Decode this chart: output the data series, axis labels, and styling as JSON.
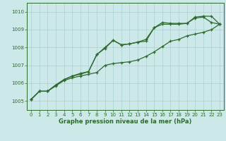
{
  "x": [
    0,
    1,
    2,
    3,
    4,
    5,
    6,
    7,
    8,
    9,
    10,
    11,
    12,
    13,
    14,
    15,
    16,
    17,
    18,
    19,
    20,
    21,
    22,
    23
  ],
  "y_main": [
    1005.1,
    1005.55,
    1005.55,
    1005.9,
    1006.2,
    1006.4,
    1006.5,
    1006.65,
    1007.6,
    1007.95,
    1008.4,
    1008.15,
    1008.2,
    1008.3,
    1008.35,
    1009.1,
    1009.3,
    1009.3,
    1009.3,
    1009.35,
    1009.65,
    1009.7,
    1009.4,
    1009.3
  ],
  "y_high": [
    1005.1,
    1005.55,
    1005.55,
    1005.9,
    1006.2,
    1006.4,
    1006.55,
    1006.65,
    1007.6,
    1008.0,
    1008.4,
    1008.15,
    1008.2,
    1008.3,
    1008.45,
    1009.1,
    1009.4,
    1009.35,
    1009.35,
    1009.35,
    1009.7,
    1009.75,
    1009.75,
    1009.3
  ],
  "y_low": [
    1005.1,
    1005.55,
    1005.55,
    1005.85,
    1006.15,
    1006.3,
    1006.4,
    1006.5,
    1006.6,
    1007.0,
    1007.1,
    1007.15,
    1007.2,
    1007.3,
    1007.5,
    1007.75,
    1008.05,
    1008.35,
    1008.45,
    1008.65,
    1008.75,
    1008.85,
    1009.0,
    1009.3
  ],
  "line_color": "#2d6a2d",
  "bg_color": "#cce8e8",
  "grid_color": "#aad0d0",
  "xlabel": "Graphe pression niveau de la mer (hPa)",
  "ylim": [
    1004.5,
    1010.5
  ],
  "xlim": [
    -0.5,
    23.5
  ],
  "yticks": [
    1005,
    1006,
    1007,
    1008,
    1009,
    1010
  ],
  "xticks": [
    0,
    1,
    2,
    3,
    4,
    5,
    6,
    7,
    8,
    9,
    10,
    11,
    12,
    13,
    14,
    15,
    16,
    17,
    18,
    19,
    20,
    21,
    22,
    23
  ],
  "title_fontsize": 5.5,
  "tick_fontsize": 5.0,
  "xlabel_fontsize": 6.0
}
